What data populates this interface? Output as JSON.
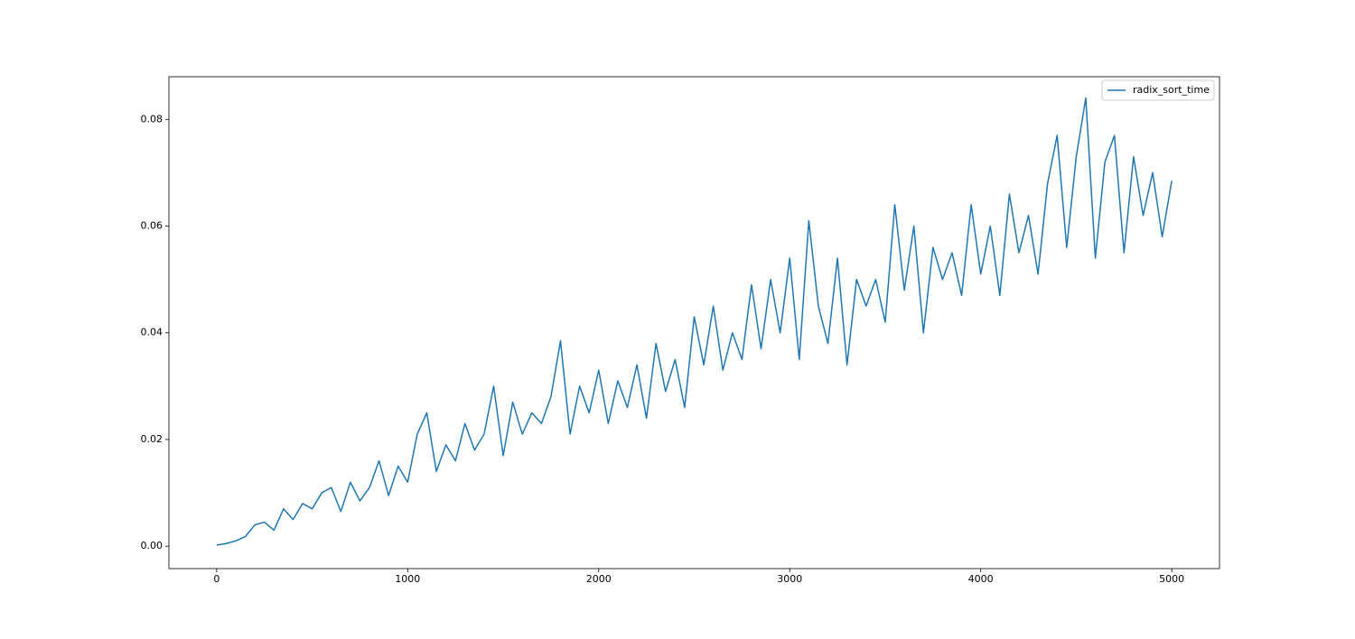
{
  "chart_data": {
    "type": "line",
    "x": [
      0,
      50,
      100,
      150,
      200,
      250,
      300,
      350,
      400,
      450,
      500,
      550,
      600,
      650,
      700,
      750,
      800,
      850,
      900,
      950,
      1000,
      1050,
      1100,
      1150,
      1200,
      1250,
      1300,
      1350,
      1400,
      1450,
      1500,
      1550,
      1600,
      1650,
      1700,
      1750,
      1800,
      1850,
      1900,
      1950,
      2000,
      2050,
      2100,
      2150,
      2200,
      2250,
      2300,
      2350,
      2400,
      2450,
      2500,
      2550,
      2600,
      2650,
      2700,
      2750,
      2800,
      2850,
      2900,
      2950,
      3000,
      3050,
      3100,
      3150,
      3200,
      3250,
      3300,
      3350,
      3400,
      3450,
      3500,
      3550,
      3600,
      3650,
      3700,
      3750,
      3800,
      3850,
      3900,
      3950,
      4000,
      4050,
      4100,
      4150,
      4200,
      4250,
      4300,
      4350,
      4400,
      4450,
      4500,
      4550,
      4600,
      4650,
      4700,
      4750,
      4800,
      4850,
      4900,
      4950,
      5000
    ],
    "series": [
      {
        "name": "radix_sort_time",
        "color": "#1f77b4",
        "values": [
          0.0002,
          0.0005,
          0.001,
          0.0018,
          0.004,
          0.0045,
          0.003,
          0.007,
          0.005,
          0.008,
          0.007,
          0.01,
          0.011,
          0.0065,
          0.012,
          0.0085,
          0.011,
          0.016,
          0.0095,
          0.015,
          0.012,
          0.021,
          0.025,
          0.014,
          0.019,
          0.016,
          0.023,
          0.018,
          0.021,
          0.03,
          0.017,
          0.027,
          0.021,
          0.025,
          0.023,
          0.028,
          0.0385,
          0.021,
          0.03,
          0.025,
          0.033,
          0.023,
          0.031,
          0.026,
          0.034,
          0.024,
          0.038,
          0.029,
          0.035,
          0.026,
          0.043,
          0.034,
          0.045,
          0.033,
          0.04,
          0.035,
          0.049,
          0.037,
          0.05,
          0.04,
          0.054,
          0.035,
          0.061,
          0.045,
          0.038,
          0.054,
          0.034,
          0.05,
          0.045,
          0.05,
          0.042,
          0.064,
          0.048,
          0.06,
          0.04,
          0.056,
          0.05,
          0.055,
          0.047,
          0.064,
          0.051,
          0.06,
          0.047,
          0.066,
          0.055,
          0.062,
          0.051,
          0.068,
          0.077,
          0.056,
          0.073,
          0.084,
          0.054,
          0.072,
          0.077,
          0.055,
          0.073,
          0.062,
          0.07,
          0.058,
          0.0685
        ]
      }
    ],
    "xlim": [
      -250,
      5250
    ],
    "xticks": [
      0,
      1000,
      2000,
      3000,
      4000,
      5000
    ],
    "ylim": [
      -0.0042,
      0.088
    ],
    "yticks": [
      {
        "value": 0,
        "label": "0.00"
      },
      0.02,
      0.04,
      0.06,
      0.08
    ],
    "legend": "upper right"
  }
}
